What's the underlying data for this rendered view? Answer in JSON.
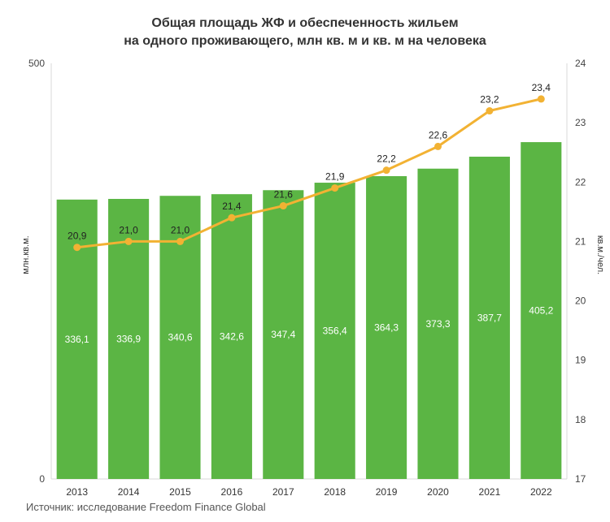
{
  "chart_data": {
    "type": "bar",
    "title_line1": "Общая площадь ЖФ и обеспеченность жильем",
    "title_line2": "на одного проживающего, млн кв. м и кв. м на человека",
    "categories": [
      "2013",
      "2014",
      "2015",
      "2016",
      "2017",
      "2018",
      "2019",
      "2020",
      "2021",
      "2022"
    ],
    "ylabel_left": "млн.кв.м.",
    "ylabel_right": "кв.м./чел.",
    "ylim_left": [
      0,
      500
    ],
    "left_ticks": [
      "0",
      "500"
    ],
    "ylim_right": [
      17,
      24
    ],
    "right_ticks": [
      "17",
      "18",
      "19",
      "20",
      "21",
      "22",
      "23",
      "24"
    ],
    "grid": false,
    "series": [
      {
        "type": "bar",
        "values": [
          336.1,
          336.9,
          340.6,
          342.6,
          347.4,
          356.4,
          364.3,
          373.3,
          387.7,
          405.2
        ],
        "labels": [
          "336,1",
          "336,9",
          "340,6",
          "342,6",
          "347,4",
          "356,4",
          "364,3",
          "373,3",
          "387,7",
          "405,2"
        ],
        "color": "#5bb544",
        "axis": "left"
      },
      {
        "type": "line",
        "values": [
          20.9,
          21.0,
          21.0,
          21.4,
          21.6,
          21.9,
          22.2,
          22.6,
          23.2,
          23.4
        ],
        "labels": [
          "20,9",
          "21,0",
          "21,0",
          "21,4",
          "21,6",
          "21,9",
          "22,2",
          "22,6",
          "23,2",
          "23,4"
        ],
        "color": "#f2b233",
        "axis": "right"
      }
    ]
  },
  "source": "Источник: исследование Freedom Finance Global"
}
